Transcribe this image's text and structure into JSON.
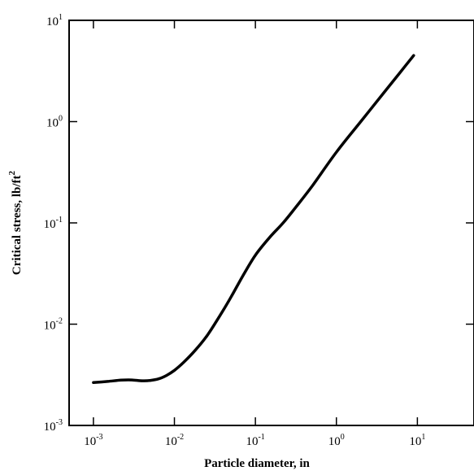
{
  "chart_data": {
    "type": "line",
    "title": "",
    "xlabel": "Particle diameter, in",
    "ylabel_main": "Critical stress, lb/ft",
    "ylabel_exp": "2",
    "x_scale": "log",
    "y_scale": "log",
    "xlim": [
      0.000501,
      50
    ],
    "ylim": [
      0.001,
      10
    ],
    "grid": false,
    "x_ticks": [
      {
        "base": "10",
        "exp": "-3",
        "value": 0.001
      },
      {
        "base": "10",
        "exp": "-2",
        "value": 0.01
      },
      {
        "base": "10",
        "exp": "-1",
        "value": 0.1
      },
      {
        "base": "10",
        "exp": "0",
        "value": 1
      },
      {
        "base": "10",
        "exp": "1",
        "value": 10
      }
    ],
    "y_ticks": [
      {
        "base": "10",
        "exp": "-3",
        "value": 0.001
      },
      {
        "base": "10",
        "exp": "-2",
        "value": 0.01
      },
      {
        "base": "10",
        "exp": "-1",
        "value": 0.1
      },
      {
        "base": "10",
        "exp": "0",
        "value": 1
      },
      {
        "base": "10",
        "exp": "1",
        "value": 10
      }
    ],
    "series": [
      {
        "color": "#000000",
        "points": [
          [
            0.001,
            0.00265
          ],
          [
            0.0015,
            0.00272
          ],
          [
            0.0022,
            0.0028
          ],
          [
            0.003,
            0.00281
          ],
          [
            0.004,
            0.00276
          ],
          [
            0.005,
            0.00278
          ],
          [
            0.0065,
            0.0029
          ],
          [
            0.008,
            0.00312
          ],
          [
            0.01,
            0.0035
          ],
          [
            0.013,
            0.0042
          ],
          [
            0.018,
            0.0055
          ],
          [
            0.025,
            0.0076
          ],
          [
            0.035,
            0.0115
          ],
          [
            0.05,
            0.0185
          ],
          [
            0.07,
            0.03
          ],
          [
            0.1,
            0.048
          ],
          [
            0.15,
            0.072
          ],
          [
            0.22,
            0.1
          ],
          [
            0.32,
            0.145
          ],
          [
            0.5,
            0.23
          ],
          [
            1.0,
            0.5
          ],
          [
            2.0,
            1.0
          ],
          [
            4.0,
            2.0
          ],
          [
            6.0,
            3.0
          ],
          [
            9.0,
            4.5
          ]
        ]
      }
    ]
  }
}
